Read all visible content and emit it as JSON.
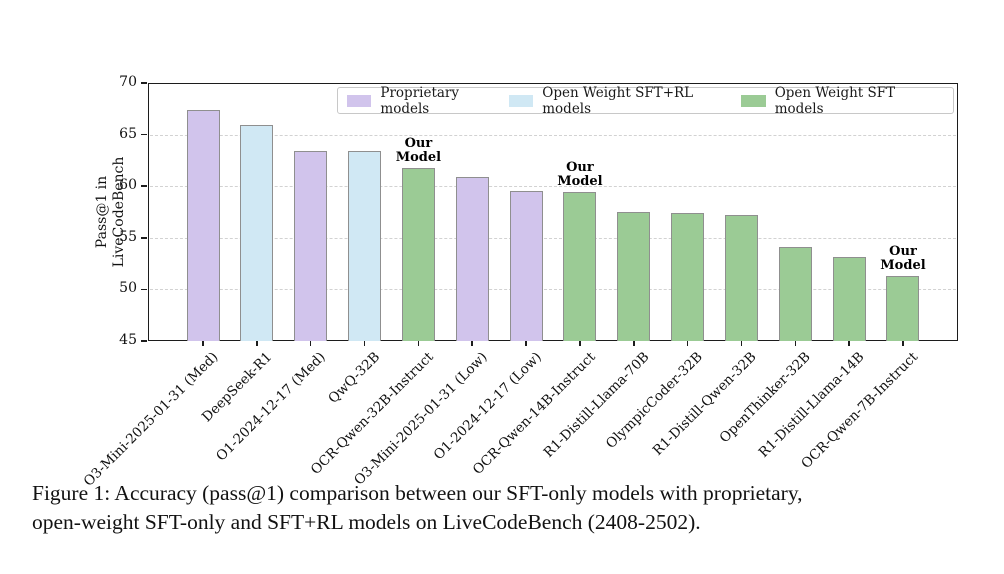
{
  "figure": {
    "caption_line1": "Figure 1: Accuracy (pass@1) comparison between our SFT-only models with proprietary,",
    "caption_line2": "open-weight SFT-only and SFT+RL models on LiveCodeBench (2408-2502)."
  },
  "colors": {
    "proprietary": "#d1c4ec",
    "open_weight_sft_rl": "#d0e8f4",
    "open_weight_sft": "#9bcb95",
    "bar_edge": "#8f8f8f",
    "grid": "#d2d2d2"
  },
  "legend": {
    "position": "top inside plot",
    "items": [
      {
        "label": "Proprietary models",
        "color_key": "proprietary"
      },
      {
        "label": "Open Weight SFT+RL models",
        "color_key": "open_weight_sft_rl"
      },
      {
        "label": "Open Weight SFT models",
        "color_key": "open_weight_sft"
      }
    ]
  },
  "chart_data": {
    "type": "bar",
    "title": "",
    "xlabel": "",
    "ylabel": "Pass@1 in\nLiveCodeBench",
    "ylim": [
      45,
      70
    ],
    "yticks": [
      45,
      50,
      55,
      60,
      65,
      70
    ],
    "gridlines": [
      50,
      55,
      60,
      65
    ],
    "grid_style": "horizontal dashed",
    "x_tick_rotation": 45,
    "annotation_label": "Our\nModel",
    "models": [
      {
        "label": "O3-Mini-2025-01-31 (Med)",
        "value": 67.4,
        "group": "proprietary",
        "our_model": false
      },
      {
        "label": "DeepSeek-R1",
        "value": 65.9,
        "group": "open_weight_sft_rl",
        "our_model": false
      },
      {
        "label": "O1-2024-12-17 (Med)",
        "value": 63.4,
        "group": "proprietary",
        "our_model": false
      },
      {
        "label": "QwQ-32B",
        "value": 63.4,
        "group": "open_weight_sft_rl",
        "our_model": false
      },
      {
        "label": "OCR-Qwen-32B-Instruct",
        "value": 61.8,
        "group": "open_weight_sft",
        "our_model": true
      },
      {
        "label": "O3-Mini-2025-01-31 (Low)",
        "value": 60.9,
        "group": "proprietary",
        "our_model": false
      },
      {
        "label": "O1-2024-12-17 (Low)",
        "value": 59.5,
        "group": "proprietary",
        "our_model": false
      },
      {
        "label": "OCR-Qwen-14B-Instruct",
        "value": 59.4,
        "group": "open_weight_sft",
        "our_model": true
      },
      {
        "label": "R1-Distill-Llama-70B",
        "value": 57.5,
        "group": "open_weight_sft",
        "our_model": false
      },
      {
        "label": "OlympicCoder-32B",
        "value": 57.4,
        "group": "open_weight_sft",
        "our_model": false
      },
      {
        "label": "R1-Distill-Qwen-32B",
        "value": 57.2,
        "group": "open_weight_sft",
        "our_model": false
      },
      {
        "label": "OpenThinker-32B",
        "value": 54.1,
        "group": "open_weight_sft",
        "our_model": false
      },
      {
        "label": "R1-Distill-Llama-14B",
        "value": 53.1,
        "group": "open_weight_sft",
        "our_model": false
      },
      {
        "label": "OCR-Qwen-7B-Instruct",
        "value": 51.3,
        "group": "open_weight_sft",
        "our_model": true
      }
    ]
  }
}
